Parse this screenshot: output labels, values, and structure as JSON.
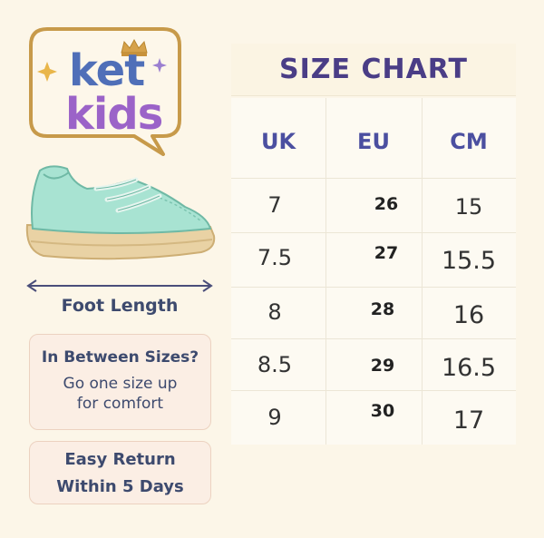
{
  "brand": {
    "line1": "ket",
    "line2": "kids"
  },
  "foot_length_label": "Foot Length",
  "sizes_box": {
    "question": "In Between Sizes?",
    "advice_line1": "Go one size up",
    "advice_line2": "for comfort"
  },
  "return_box": {
    "line1": "Easy Return",
    "line2": "Within 5 Days"
  },
  "chart": {
    "title": "SIZE CHART",
    "headers": [
      "UK",
      "EU",
      "CM"
    ],
    "rows": [
      [
        "7",
        "26",
        "15"
      ],
      [
        "7.5",
        "27",
        "15.5"
      ],
      [
        "8",
        "28",
        "16"
      ],
      [
        "8.5",
        "29",
        "16.5"
      ],
      [
        "9",
        "30",
        "17"
      ]
    ]
  },
  "colors": {
    "background": "#fcf6e8",
    "title": "#4a3d86",
    "header": "#4b4fa0",
    "logo_ket": "#4f6fb8",
    "logo_kids": "#9b63c8",
    "shoe_upper": "#a8e3d2",
    "shoe_sole": "#e9d2a4"
  }
}
